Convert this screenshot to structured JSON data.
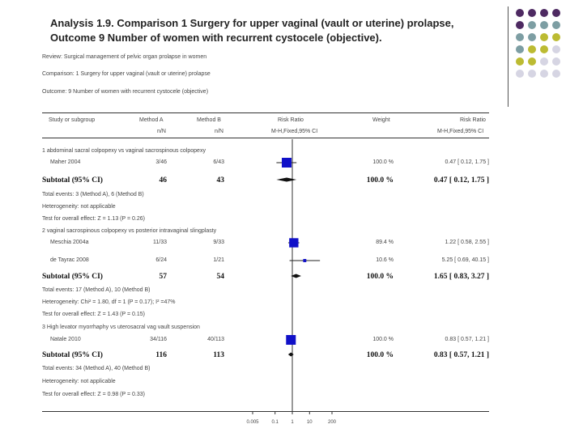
{
  "title": "Analysis 1.9.   Comparison 1 Surgery for upper vaginal (vault or uterine) prolapse, Outcome 9 Number of women with recurrent cystocele (objective).",
  "meta": {
    "review": "Review:    Surgical management of pelvic organ prolapse in women",
    "comparison": "Comparison:    1 Surgery for upper vaginal (vault or uterine) prolapse",
    "outcome": "Outcome:    9 Number of women with recurrent cystocele (objective)"
  },
  "headers": {
    "study": "Study or subgroup",
    "method_a": "Method A",
    "method_b": "Method B",
    "nN_a": "n/N",
    "nN_b": "n/N",
    "rr": "Risk Ratio",
    "rr_sub": "M-H,Fixed,95% CI",
    "weight": "Weight",
    "rr2": "Risk Ratio",
    "rr2_sub": "M-H,Fixed,95% CI"
  },
  "groups": [
    {
      "label": "1 abdominal sacral colpopexy vs vaginal sacrospinous colpopexy",
      "studies": [
        {
          "name": "Maher 2004",
          "a": "3/46",
          "b": "6/43",
          "weight": "100.0 %",
          "ci": "0.47 [ 0.12, 1.75 ]"
        }
      ],
      "subtotal": {
        "label": "Subtotal (95% CI)",
        "a": "46",
        "b": "43",
        "weight": "100.0 %",
        "ci": "0.47 [ 0.12, 1.75 ]"
      },
      "notes": [
        "Total events: 3 (Method A), 6 (Method B)",
        "Heterogeneity: not applicable",
        "Test for overall effect: Z = 1.13 (P = 0.26)"
      ]
    },
    {
      "label": "2 vaginal sacrospinous colpopexy vs posterior intravaginal slingplasty",
      "studies": [
        {
          "name": "Meschia 2004a",
          "a": "11/33",
          "b": "9/33",
          "weight": "89.4 %",
          "ci": "1.22 [ 0.58, 2.55 ]"
        },
        {
          "name": "de Tayrac 2008",
          "a": "6/24",
          "b": "1/21",
          "weight": "10.6 %",
          "ci": "5.25 [ 0.69, 40.15 ]"
        }
      ],
      "subtotal": {
        "label": "Subtotal (95% CI)",
        "a": "57",
        "b": "54",
        "weight": "100.0 %",
        "ci": "1.65 [ 0.83, 3.27 ]"
      },
      "notes": [
        "Total events: 17 (Method A), 10 (Method B)",
        "Heterogeneity: Chi² = 1.80, df = 1 (P = 0.17); I² =47%",
        "Test for overall effect: Z = 1.43 (P = 0.15)"
      ]
    },
    {
      "label": "3 High levator myorrhaphy vs uterosacral vag vault suspension",
      "studies": [
        {
          "name": "Natale 2010",
          "a": "34/116",
          "b": "40/113",
          "weight": "100.0 %",
          "ci": "0.83 [ 0.57, 1.21 ]"
        }
      ],
      "subtotal": {
        "label": "Subtotal (95% CI)",
        "a": "116",
        "b": "113",
        "weight": "100.0 %",
        "ci": "0.83 [ 0.57, 1.21 ]"
      },
      "notes": [
        "Total events: 34 (Method A), 40 (Method B)",
        "Heterogeneity: not applicable",
        "Test for overall effect: Z = 0.98 (P = 0.33)"
      ]
    }
  ],
  "axis_ticks": [
    "0.005",
    "0.1",
    "1",
    "10",
    "200"
  ],
  "colors": {
    "purple": "#4e2a62",
    "teal": "#7d9ea3",
    "olive": "#bcbb32",
    "lilac": "#d6d5e3",
    "marker": "#1010c8"
  },
  "decor_dots": [
    [
      "purple",
      "purple",
      "purple",
      "purple"
    ],
    [
      "purple",
      "teal",
      "teal",
      "teal"
    ],
    [
      "teal",
      "teal",
      "olive",
      "olive"
    ],
    [
      "teal",
      "olive",
      "olive",
      "lilac"
    ],
    [
      "olive",
      "olive",
      "lilac",
      "lilac"
    ],
    [
      "lilac",
      "lilac",
      "lilac",
      "lilac"
    ]
  ],
  "chart_data": {
    "type": "forest",
    "title": "Number of women with recurrent cystocele (objective)",
    "xscale": "log",
    "xlim": [
      0.005,
      200
    ],
    "reference_line": 1,
    "xticks": [
      0.005,
      0.1,
      1,
      10,
      200
    ],
    "series": [
      {
        "name": "Maher 2004",
        "kind": "study",
        "rr": 0.47,
        "lo": 0.12,
        "hi": 1.75,
        "weight": 100.0
      },
      {
        "name": "Subtotal 1",
        "kind": "subtotal",
        "rr": 0.47,
        "lo": 0.12,
        "hi": 1.75
      },
      {
        "name": "Meschia 2004a",
        "kind": "study",
        "rr": 1.22,
        "lo": 0.58,
        "hi": 2.55,
        "weight": 89.4
      },
      {
        "name": "de Tayrac 2008",
        "kind": "study",
        "rr": 5.25,
        "lo": 0.69,
        "hi": 40.15,
        "weight": 10.6
      },
      {
        "name": "Subtotal 2",
        "kind": "subtotal",
        "rr": 1.65,
        "lo": 0.83,
        "hi": 3.27
      },
      {
        "name": "Natale 2010",
        "kind": "study",
        "rr": 0.83,
        "lo": 0.57,
        "hi": 1.21,
        "weight": 100.0
      },
      {
        "name": "Subtotal 3",
        "kind": "subtotal",
        "rr": 0.83,
        "lo": 0.57,
        "hi": 1.21
      }
    ]
  }
}
